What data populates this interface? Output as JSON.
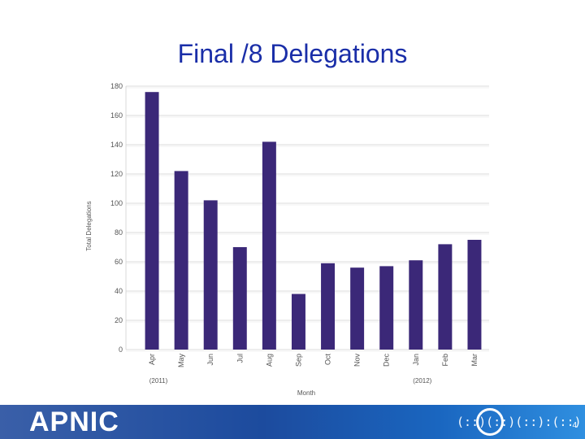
{
  "slide": {
    "title": "Final /8 Delegations",
    "page_number": "4"
  },
  "footer": {
    "brand": "APNIC",
    "deco_glyphs": "(::)(::)(::):(::)"
  },
  "chart_data": {
    "type": "bar",
    "categories": [
      "Apr",
      "May",
      "Jun",
      "Jul",
      "Aug",
      "Sep",
      "Oct",
      "Nov",
      "Dec",
      "Jan",
      "Feb",
      "Mar"
    ],
    "values": [
      176,
      122,
      102,
      70,
      142,
      38,
      59,
      56,
      57,
      61,
      72,
      75
    ],
    "ylim": [
      0,
      180
    ],
    "yticks": [
      0,
      20,
      40,
      60,
      80,
      100,
      120,
      140,
      160,
      180
    ],
    "xlabel": "Month",
    "ylabel": "Total Delegations",
    "year_labels": [
      {
        "text": "(2011)",
        "category": "Apr"
      },
      {
        "text": "(2012)",
        "category": "Jan"
      }
    ],
    "bar_color": "#3b2878",
    "grid": true
  }
}
